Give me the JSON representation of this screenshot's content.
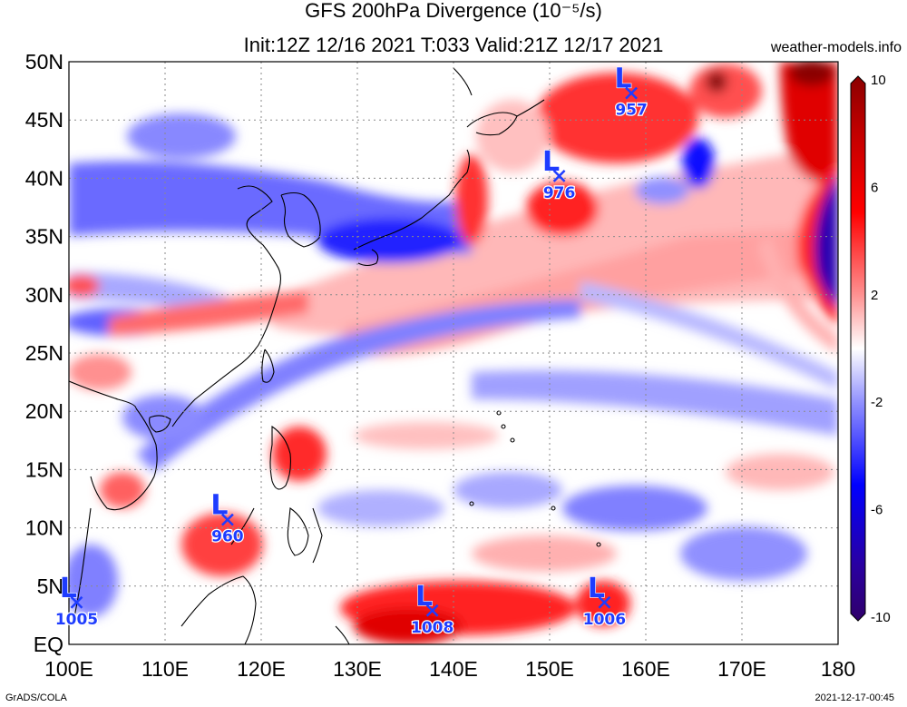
{
  "title": {
    "line1": "GFS 200hPa Divergence (10⁻⁵/s)",
    "line2": "Init:12Z 12/16 2021 T:033 Valid:21Z 12/17 2021"
  },
  "site": "weather-models.info",
  "footer": {
    "left": "GrADS/COLA",
    "right": "2021-12-17-00:45"
  },
  "map": {
    "lon_range": [
      100,
      180
    ],
    "lat_range": [
      0,
      50
    ],
    "lon_labels": [
      "100E",
      "110E",
      "120E",
      "130E",
      "140E",
      "150E",
      "160E",
      "170E",
      "180"
    ],
    "lat_labels": [
      "EQ",
      "5N",
      "10N",
      "15N",
      "20N",
      "25N",
      "30N",
      "35N",
      "40N",
      "45N",
      "50N"
    ],
    "colorbar": {
      "min": -10,
      "max": 10,
      "tick_values": [
        10,
        6,
        2,
        -2,
        -6,
        -10
      ],
      "tick_labels": [
        "10",
        "6",
        "2",
        "-2",
        "-6",
        "-10"
      ]
    },
    "lows": [
      {
        "label": "L",
        "pressure": "957",
        "lon": 158.5,
        "lat": 47.3
      },
      {
        "label": "L",
        "pressure": "976",
        "lon": 151.0,
        "lat": 40.2
      },
      {
        "label": "L",
        "pressure": "960",
        "lon": 116.5,
        "lat": 10.7
      },
      {
        "label": "L",
        "pressure": "1005",
        "lon": 100.8,
        "lat": 3.6
      },
      {
        "label": "L",
        "pressure": "1008",
        "lon": 137.8,
        "lat": 2.9
      },
      {
        "label": "L",
        "pressure": "1006",
        "lon": 155.7,
        "lat": 3.6
      }
    ],
    "colors": {
      "strong_pos": "#ff0000",
      "pos": "#ff8080",
      "weak_pos": "#ffc8c8",
      "neutral": "#ffffff",
      "weak_neg": "#c8c8ff",
      "neg": "#6060ff",
      "strong_neg": "#0000ff",
      "extreme_pos": "#8b0000",
      "extreme_neg": "#30006a",
      "low_marker": "#1e3cff"
    }
  }
}
